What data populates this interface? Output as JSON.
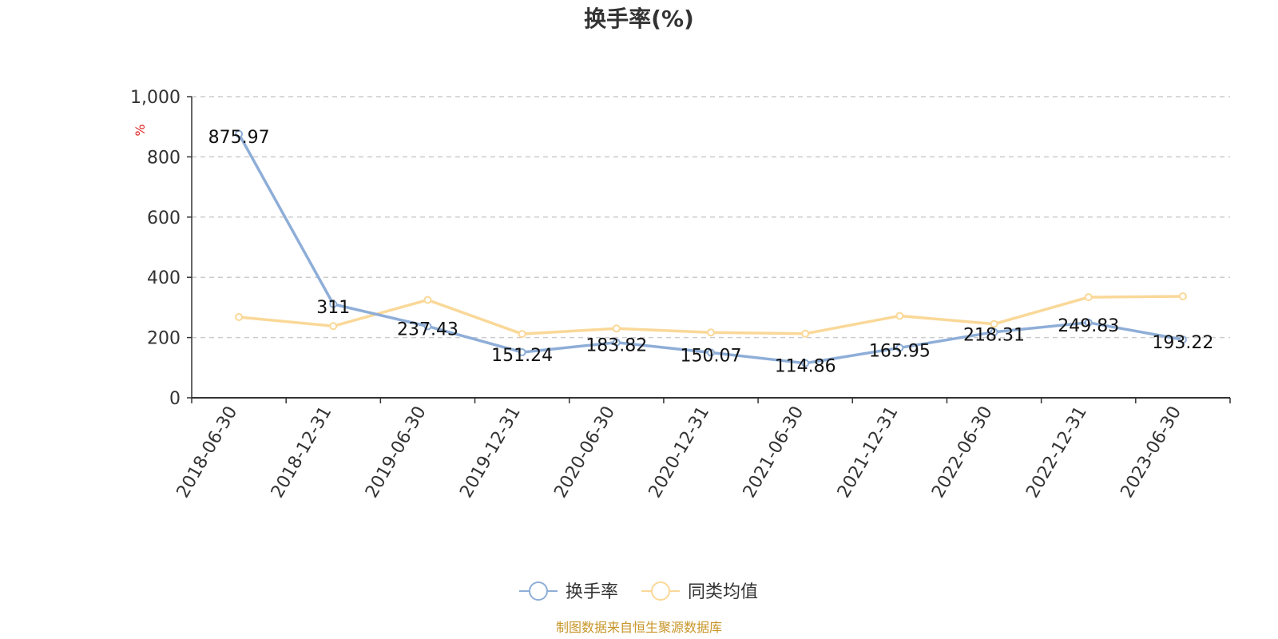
{
  "chart_data": {
    "type": "line",
    "title": "换手率(%)",
    "ylabel": "%",
    "xlabel": "",
    "ylim": [
      0,
      1000
    ],
    "yticks": [
      "0",
      "200",
      "400",
      "600",
      "800",
      "1,000"
    ],
    "ytick_values": [
      0,
      200,
      400,
      600,
      800,
      1000
    ],
    "categories": [
      "2018-06-30",
      "2018-12-31",
      "2019-06-30",
      "2019-12-31",
      "2020-06-30",
      "2020-12-31",
      "2021-06-30",
      "2021-12-31",
      "2022-06-30",
      "2022-12-31",
      "2023-06-30"
    ],
    "series": [
      {
        "name": "换手率",
        "color": "#8eaed8",
        "values": [
          875.97,
          311,
          237.43,
          151.24,
          183.82,
          150.07,
          114.86,
          165.95,
          218.31,
          249.83,
          193.22
        ],
        "labels": [
          "875.97",
          "311",
          "237.43",
          "151.24",
          "183.82",
          "150.07",
          "114.86",
          "165.95",
          "218.31",
          "249.83",
          "193.22"
        ]
      },
      {
        "name": "同类均值",
        "color": "#fad898",
        "values": [
          268,
          238,
          325,
          212,
          230,
          217,
          213,
          272,
          245,
          334,
          337
        ]
      }
    ],
    "legend": "bottom-center",
    "grid": true,
    "source_note": "制图数据来自恒生聚源数据库"
  }
}
